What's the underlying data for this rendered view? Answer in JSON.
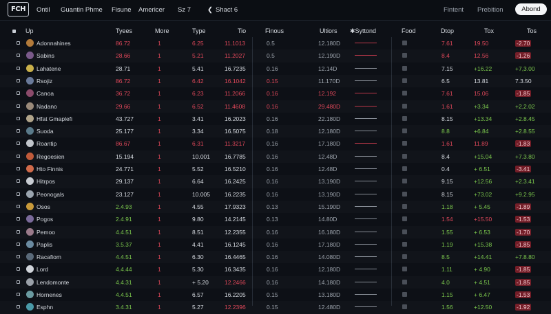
{
  "app": {
    "logo": "FCH"
  },
  "menu": [
    "Ontil",
    "Guantin Phme",
    "Fisune",
    "Americer",
    "Sz 7",
    "Shact 6"
  ],
  "menu_icon": "chevron-left-icon",
  "right_links": [
    "Fintent",
    "Prebition"
  ],
  "action_button": "Abond",
  "columns": [
    "Up",
    "Tyees",
    "More",
    "Type",
    "Tio",
    "Finous",
    "Ultiors",
    "Syttond",
    "Food",
    "Dtop",
    "Tox",
    "Tos"
  ],
  "colors": {
    "red": "#e0485a",
    "green": "#7cc94d",
    "white": "#d6dae0",
    "background": "#0d1016"
  },
  "rows": [
    {
      "name": "Adonnahines",
      "av": "#b27a3a",
      "tyees": "86.72",
      "tc": "red",
      "more": "1",
      "type": "6.25",
      "tio": "11.1013",
      "tioc": "red",
      "finous": "0.5",
      "fc": "grey",
      "ultiors": "12.180D",
      "uc": "grey",
      "spark": "#c0394b",
      "dtop": "7.61",
      "dc": "red",
      "tox": "19.50",
      "toxc": "red",
      "tos": "-2.70",
      "tosc": "red",
      "tag": true
    },
    {
      "name": "Sabins",
      "av": "#7a5a8a",
      "tyees": "28.66",
      "tc": "red",
      "more": "1",
      "type": "5.21",
      "tio": "11.2027",
      "tioc": "red",
      "finous": "0.5",
      "fc": "grey",
      "ultiors": "12.190D",
      "uc": "grey",
      "spark": "#c0394b",
      "dtop": "8.4",
      "dc": "red",
      "tox": "12.56",
      "toxc": "red",
      "tos": "-1.26",
      "tosc": "red",
      "tag": true
    },
    {
      "name": "Lahatene",
      "av": "#c9b04a",
      "tyees": "28.71",
      "tc": "white",
      "more": "1",
      "type": "5.41",
      "tio": "16.7235",
      "tioc": "white",
      "finous": "0.16",
      "fc": "grey",
      "ultiors": "12.14D",
      "uc": "grey",
      "spark": "#8a9099",
      "dtop": "7.15",
      "dc": "white",
      "tox": "+16.22",
      "toxc": "green",
      "tos": "+7,3.00",
      "tosc": "green",
      "tag": false
    },
    {
      "name": "Rsojiz",
      "av": "#6a7a9a",
      "tyees": "86.72",
      "tc": "red",
      "more": "1",
      "type": "6.42",
      "tio": "16.1042",
      "tioc": "red",
      "finous": "0.15",
      "fc": "red",
      "ultiors": "11.170D",
      "uc": "grey",
      "spark": "#8a9099",
      "dtop": "6.5",
      "dc": "white",
      "tox": "13.81",
      "toxc": "white",
      "tos": "7.3.50",
      "tosc": "white",
      "tag": false
    },
    {
      "name": "Canoa",
      "av": "#8a4a6a",
      "tyees": "36.72",
      "tc": "red",
      "more": "1",
      "type": "6.23",
      "tio": "11.2066",
      "tioc": "red",
      "finous": "0.16",
      "fc": "red",
      "ultiors": "12.192",
      "uc": "red",
      "spark": "#c0394b",
      "dtop": "7.61",
      "dc": "red",
      "tox": "15.06",
      "toxc": "red",
      "tos": "-1.85",
      "tosc": "red",
      "tag": true
    },
    {
      "name": "Nadano",
      "av": "#9a8a7a",
      "tyees": "29.66",
      "tc": "red",
      "more": "1",
      "type": "6.52",
      "tio": "11.4608",
      "tioc": "red",
      "finous": "0.16",
      "fc": "red",
      "ultiors": "29.480D",
      "uc": "red",
      "spark": "#c0394b",
      "dtop": "1.61",
      "dc": "red",
      "tox": "+3.34",
      "toxc": "green",
      "tos": "+2,2.02",
      "tosc": "green",
      "tag": false
    },
    {
      "name": "Hfat Gmaplefi",
      "av": "#b0a48a",
      "tyees": "43.727",
      "tc": "white",
      "more": "1",
      "type": "3.41",
      "tio": "16.2023",
      "tioc": "white",
      "finous": "0.16",
      "fc": "grey",
      "ultiors": "22.180D",
      "uc": "grey",
      "spark": "#8a9099",
      "dtop": "8.15",
      "dc": "white",
      "tox": "+13.34",
      "toxc": "green",
      "tos": "+2.8.45",
      "tosc": "green",
      "tag": false
    },
    {
      "name": "Suoda",
      "av": "#5a7a8a",
      "tyees": "25.177",
      "tc": "white",
      "more": "1",
      "type": "3.34",
      "tio": "16.5075",
      "tioc": "white",
      "finous": "0.18",
      "fc": "grey",
      "ultiors": "12.180D",
      "uc": "grey",
      "spark": "#8a9099",
      "dtop": "8.8",
      "dc": "green",
      "tox": "+6.84",
      "toxc": "green",
      "tos": "+2.8.55",
      "tosc": "green",
      "tag": false
    },
    {
      "name": "Roantip",
      "av": "#c0c4ca",
      "tyees": "86.67",
      "tc": "red",
      "more": "1",
      "type": "6.31",
      "tio": "11.3217",
      "tioc": "red",
      "finous": "0.16",
      "fc": "grey",
      "ultiors": "17.180D",
      "uc": "grey",
      "spark": "#c0394b",
      "dtop": "1.61",
      "dc": "red",
      "tox": "11.89",
      "toxc": "red",
      "tos": "-1.83",
      "tosc": "red",
      "tag": true
    },
    {
      "name": "Regoesien",
      "av": "#c05a3a",
      "tyees": "15.194",
      "tc": "white",
      "more": "1",
      "type": "10.001",
      "tio": "16.7785",
      "tioc": "white",
      "finous": "0.16",
      "fc": "grey",
      "ultiors": "12.48D",
      "uc": "grey",
      "spark": "#8a9099",
      "dtop": "8.4",
      "dc": "white",
      "tox": "+15.04",
      "toxc": "green",
      "tos": "+7.3.80",
      "tosc": "green",
      "tag": false
    },
    {
      "name": "Hto Finnis",
      "av": "#d06a4a",
      "tyees": "24.771",
      "tc": "white",
      "more": "1",
      "type": "5.52",
      "tio": "16.5210",
      "tioc": "white",
      "finous": "0.16",
      "fc": "grey",
      "ultiors": "12.48D",
      "uc": "grey",
      "spark": "#8a9099",
      "dtop": "0.4",
      "dc": "white",
      "tox": "+ 6.51",
      "toxc": "green",
      "tos": "-3.41",
      "tosc": "red",
      "tag": true
    },
    {
      "name": "Hitrpos",
      "av": "#c8ccd2",
      "tyees": "29.137",
      "tc": "white",
      "more": "1",
      "type": "6.64",
      "tio": "16.2425",
      "tioc": "white",
      "finous": "0.16",
      "fc": "grey",
      "ultiors": "13.190D",
      "uc": "grey",
      "spark": "#8a9099",
      "dtop": "9.15",
      "dc": "white",
      "tox": "+12.56",
      "toxc": "green",
      "tos": "+2.3.41",
      "tosc": "green",
      "tag": false
    },
    {
      "name": "Peonogals",
      "av": "#9aa4ae",
      "tyees": "23.127",
      "tc": "white",
      "more": "1",
      "type": "10.005",
      "tio": "16.2235",
      "tioc": "white",
      "finous": "0.16",
      "fc": "grey",
      "ultiors": "13.190D",
      "uc": "grey",
      "spark": "#8a9099",
      "dtop": "8.15",
      "dc": "white",
      "tox": "+73.02",
      "toxc": "green",
      "tos": "+9.2.95",
      "tosc": "green",
      "tag": false
    },
    {
      "name": "Osos",
      "av": "#c89a3a",
      "tyees": "2.4.93",
      "tc": "green",
      "more": "1",
      "type": "4.55",
      "tio": "17.9323",
      "tioc": "white",
      "finous": "0.13",
      "fc": "grey",
      "ultiors": "15.190D",
      "uc": "grey",
      "spark": "#8a9099",
      "dtop": "1.18",
      "dc": "green",
      "tox": "+ 5.45",
      "toxc": "green",
      "tos": "-1.89",
      "tosc": "red",
      "tag": true
    },
    {
      "name": "Pogos",
      "av": "#7a6a9a",
      "tyees": "2.4.91",
      "tc": "green",
      "more": "1",
      "type": "9.80",
      "tio": "14.2145",
      "tioc": "white",
      "finous": "0.13",
      "fc": "grey",
      "ultiors": "14.80D",
      "uc": "grey",
      "spark": "#8a9099",
      "dtop": "1.54",
      "dc": "red",
      "tox": "+15.50",
      "toxc": "red",
      "tos": "-1.53",
      "tosc": "red",
      "tag": true
    },
    {
      "name": "Pemoo",
      "av": "#9a7a8a",
      "tyees": "4.4.51",
      "tc": "green",
      "more": "1",
      "type": "8.51",
      "tio": "12.2355",
      "tioc": "white",
      "finous": "0.16",
      "fc": "grey",
      "ultiors": "16.180D",
      "uc": "grey",
      "spark": "#8a9099",
      "dtop": "1.55",
      "dc": "green",
      "tox": "+ 6.53",
      "toxc": "green",
      "tos": "-1.70",
      "tosc": "red",
      "tag": true
    },
    {
      "name": "Paplis",
      "av": "#6a8aa0",
      "tyees": "3.5.37",
      "tc": "green",
      "more": "1",
      "type": "4.41",
      "tio": "16.1245",
      "tioc": "white",
      "finous": "0.16",
      "fc": "grey",
      "ultiors": "17.180D",
      "uc": "grey",
      "spark": "#8a9099",
      "dtop": "1.19",
      "dc": "green",
      "tox": "+15.38",
      "toxc": "green",
      "tos": "-1.85",
      "tosc": "red",
      "tag": true
    },
    {
      "name": "Racafiom",
      "av": "#5a6a7a",
      "tyees": "4.4.51",
      "tc": "green",
      "more": "1",
      "type": "6.30",
      "tio": "16.4465",
      "tioc": "white",
      "finous": "0.16",
      "fc": "grey",
      "ultiors": "14.080D",
      "uc": "grey",
      "spark": "#8a9099",
      "dtop": "8.5",
      "dc": "green",
      "tox": "+14.41",
      "toxc": "green",
      "tos": "+7.8.80",
      "tosc": "green",
      "tag": false
    },
    {
      "name": "Lord",
      "av": "#d0d4da",
      "tyees": "4.4.44",
      "tc": "green",
      "more": "1",
      "type": "5.30",
      "tio": "16.3435",
      "tioc": "white",
      "finous": "0.16",
      "fc": "grey",
      "ultiors": "12.180D",
      "uc": "grey",
      "spark": "#8a9099",
      "dtop": "1.11",
      "dc": "green",
      "tox": "+ 4.90",
      "toxc": "green",
      "tos": "-1.85",
      "tosc": "red",
      "tag": true
    },
    {
      "name": "Lendomonte",
      "av": "#9aa0a8",
      "tyees": "4.4.31",
      "tc": "green",
      "more": "1",
      "type": "+ 5.20",
      "tio": "12.2466",
      "tioc": "red",
      "finous": "0.16",
      "fc": "grey",
      "ultiors": "14.180D",
      "uc": "grey",
      "spark": "#8a9099",
      "dtop": "4.0",
      "dc": "green",
      "tox": "+ 4.51",
      "toxc": "green",
      "tos": "-1.85",
      "tosc": "red",
      "tag": true
    },
    {
      "name": "Hornenes",
      "av": "#6a9aa0",
      "tyees": "4.4.51",
      "tc": "green",
      "more": "1",
      "type": "6.57",
      "tio": "16.2205",
      "tioc": "white",
      "finous": "0.15",
      "fc": "grey",
      "ultiors": "13.180D",
      "uc": "grey",
      "spark": "#8a9099",
      "dtop": "1.15",
      "dc": "green",
      "tox": "+ 6.47",
      "toxc": "green",
      "tos": "-1.53",
      "tosc": "red",
      "tag": true
    },
    {
      "name": "Esphn",
      "av": "#4a9aa8",
      "tyees": "3.4.31",
      "tc": "green",
      "more": "1",
      "type": "5.27",
      "tio": "12.2396",
      "tioc": "red",
      "finous": "0.15",
      "fc": "grey",
      "ultiors": "12.480D",
      "uc": "grey",
      "spark": "#8a9099",
      "dtop": "1.56",
      "dc": "green",
      "tox": "+12.50",
      "toxc": "green",
      "tos": "-1.92",
      "tosc": "red",
      "tag": true
    }
  ]
}
